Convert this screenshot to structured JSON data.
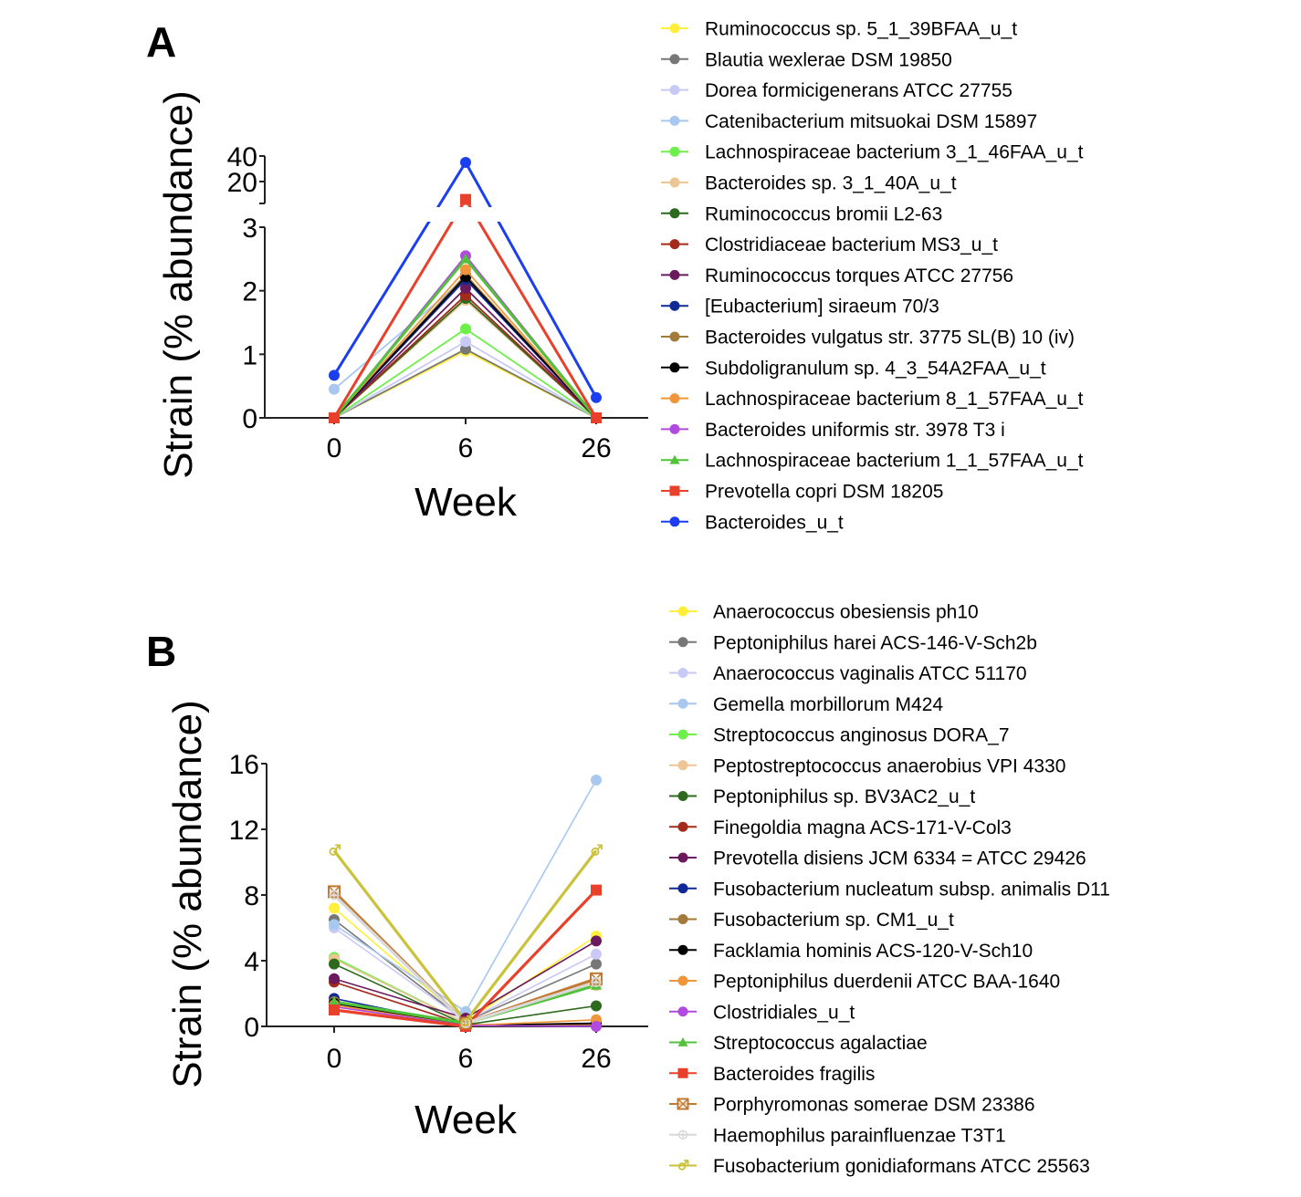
{
  "chart_data": [
    {
      "type": "line",
      "panel": "A",
      "title": "",
      "xlabel": "Week",
      "ylabel": "Strain (% abundance)",
      "x": [
        "0",
        "6",
        "26"
      ],
      "axis_break": {
        "lower_range": [
          0,
          3
        ],
        "upper_range": [
          3,
          40
        ]
      },
      "yticks_lower": [
        "0",
        "1",
        "2",
        "3"
      ],
      "yticks_upper": [
        "20",
        "40"
      ],
      "legend_position": "right",
      "series": [
        {
          "name": "Ruminococcus sp. 5_1_39BFAA_u_t",
          "color": "#ffef3a",
          "marker": "circle",
          "values": [
            0,
            1.05,
            0
          ]
        },
        {
          "name": "Blautia wexlerae DSM 19850",
          "color": "#777777",
          "marker": "circle",
          "values": [
            0,
            1.08,
            0
          ]
        },
        {
          "name": "Dorea formicigenerans ATCC 27755",
          "color": "#c9c9f5",
          "marker": "circle",
          "values": [
            0,
            1.2,
            0
          ]
        },
        {
          "name": "Catenibacterium mitsuokai DSM 15897",
          "color": "#a8c8f0",
          "marker": "circle",
          "values": [
            0.45,
            2.2,
            0
          ]
        },
        {
          "name": "Lachnospiraceae bacterium 3_1_46FAA_u_t",
          "color": "#6df04a",
          "marker": "circle",
          "values": [
            0,
            1.4,
            0
          ]
        },
        {
          "name": "Bacteroides sp. 3_1_40A_u_t",
          "color": "#eec594",
          "marker": "circle",
          "values": [
            0,
            1.85,
            0
          ]
        },
        {
          "name": "Ruminococcus bromii L2-63",
          "color": "#2d6a1e",
          "marker": "circle",
          "values": [
            0,
            1.88,
            0
          ]
        },
        {
          "name": "Clostridiaceae bacterium MS3_u_t",
          "color": "#a42a1a",
          "marker": "circle",
          "values": [
            0,
            1.93,
            0
          ]
        },
        {
          "name": "Ruminococcus torques ATCC 27756",
          "color": "#6b1a5e",
          "marker": "circle",
          "values": [
            0,
            2.04,
            0
          ]
        },
        {
          "name": "[Eubacterium] siraeum 70/3",
          "color": "#0f2a96",
          "marker": "circle",
          "values": [
            0,
            2.18,
            0
          ]
        },
        {
          "name": "Bacteroides vulgatus str. 3775 SL(B) 10 (iv)",
          "color": "#a27a3a",
          "marker": "circle",
          "values": [
            0,
            2.25,
            0
          ]
        },
        {
          "name": "Subdoligranulum sp. 4_3_54A2FAA_u_t",
          "color": "#000000",
          "marker": "circle",
          "values": [
            0,
            2.22,
            0
          ]
        },
        {
          "name": "Lachnospiraceae bacterium 8_1_57FAA_u_t",
          "color": "#f0963a",
          "marker": "circle",
          "values": [
            0,
            2.33,
            0
          ]
        },
        {
          "name": "Bacteroides uniformis str. 3978 T3 i",
          "color": "#b04ae0",
          "marker": "circle",
          "values": [
            0,
            2.55,
            0
          ]
        },
        {
          "name": "Lachnospiraceae bacterium 1_1_57FAA_u_t",
          "color": "#52c23a",
          "marker": "triangle",
          "values": [
            0,
            2.5,
            0
          ]
        },
        {
          "name": "Prevotella copri DSM 18205",
          "color": "#e8402a",
          "marker": "square",
          "values": [
            0,
            6,
            0
          ]
        },
        {
          "name": "Bacteroides_u_t",
          "color": "#1a3ef0",
          "marker": "circle",
          "values": [
            0.67,
            35,
            0.32
          ]
        }
      ]
    },
    {
      "type": "line",
      "panel": "B",
      "title": "",
      "xlabel": "Week",
      "ylabel": "Strain (% abundance)",
      "x": [
        "0",
        "6",
        "26"
      ],
      "ylim": [
        0,
        16
      ],
      "yticks": [
        "0",
        "4",
        "8",
        "12",
        "16"
      ],
      "legend_position": "right",
      "series": [
        {
          "name": "Anaerococcus obesiensis ph10",
          "color": "#ffef3a",
          "marker": "circle",
          "values": [
            7.2,
            0.3,
            5.5
          ]
        },
        {
          "name": "Peptoniphilus harei ACS-146-V-Sch2b",
          "color": "#777777",
          "marker": "circle",
          "values": [
            6.5,
            0.3,
            3.8
          ]
        },
        {
          "name": "Anaerococcus vaginalis ATCC 51170",
          "color": "#c9c9f5",
          "marker": "circle",
          "values": [
            6.0,
            0.3,
            4.4
          ]
        },
        {
          "name": "Gemella morbillorum M424",
          "color": "#a8c8f0",
          "marker": "circle",
          "values": [
            6.2,
            0.9,
            15.0
          ]
        },
        {
          "name": "Streptococcus anginosus DORA_7",
          "color": "#6df04a",
          "marker": "circle",
          "values": [
            4.2,
            0.2,
            2.5
          ]
        },
        {
          "name": "Peptostreptococcus anaerobius VPI 4330",
          "color": "#eec594",
          "marker": "circle",
          "values": [
            4.1,
            0.2,
            2.5
          ]
        },
        {
          "name": "Peptoniphilus sp. BV3AC2_u_t",
          "color": "#2d6a1e",
          "marker": "circle",
          "values": [
            3.8,
            0.1,
            1.25
          ]
        },
        {
          "name": "Finegoldia magna ACS-171-V-Col3",
          "color": "#a42a1a",
          "marker": "circle",
          "values": [
            2.7,
            0.1,
            0.1
          ]
        },
        {
          "name": "Prevotella disiens JCM 6334 = ATCC 29426",
          "color": "#6b1a5e",
          "marker": "circle",
          "values": [
            2.9,
            0.5,
            5.2
          ]
        },
        {
          "name": "Fusobacterium nucleatum subsp. animalis D11",
          "color": "#0f2a96",
          "marker": "circle",
          "values": [
            1.7,
            0.05,
            0.05
          ]
        },
        {
          "name": "Fusobacterium sp. CM1_u_t",
          "color": "#a27a3a",
          "marker": "circle",
          "values": [
            1.5,
            0.05,
            0.05
          ]
        },
        {
          "name": "Facklamia hominis ACS-120-V-Sch10",
          "color": "#000000",
          "marker": "circle",
          "values": [
            1.4,
            0.05,
            0.2
          ]
        },
        {
          "name": "Peptoniphilus duerdenii ATCC BAA-1640",
          "color": "#f0963a",
          "marker": "circle",
          "values": [
            1.3,
            0.05,
            0.4
          ]
        },
        {
          "name": "Clostridiales_u_t",
          "color": "#b04ae0",
          "marker": "circle",
          "values": [
            1.2,
            0.05,
            0.0
          ]
        },
        {
          "name": "Streptococcus agalactiae",
          "color": "#52c23a",
          "marker": "triangle",
          "values": [
            1.5,
            0.2,
            2.5
          ]
        },
        {
          "name": "Bacteroides fragilis",
          "color": "#e8402a",
          "marker": "square",
          "values": [
            1.0,
            0.0,
            8.3
          ]
        },
        {
          "name": "Porphyromonas somerae DSM 23386",
          "color": "#c2782e",
          "marker": "boxed-x",
          "values": [
            8.2,
            0.2,
            2.9
          ]
        },
        {
          "name": "Haemophilus parainfluenzae T3T1",
          "color": "#d8d8d8",
          "marker": "crossed-circle",
          "values": [
            8.0,
            0.2,
            2.7
          ]
        },
        {
          "name": "Fusobacterium gonidiaformans ATCC 25563",
          "color": "#c9c23a",
          "marker": "male-symbol",
          "values": [
            10.7,
            0.3,
            10.7
          ]
        }
      ]
    }
  ]
}
